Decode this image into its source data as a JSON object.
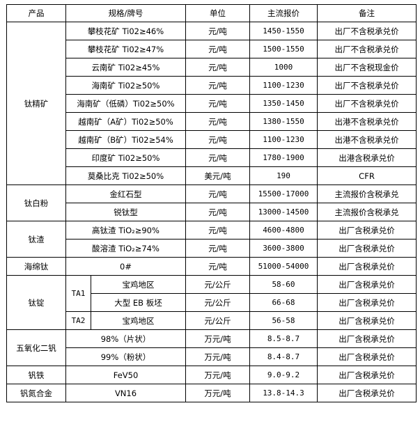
{
  "headers": {
    "product": "产品",
    "spec": "规格/牌号",
    "unit": "单位",
    "price": "主流报价",
    "note": "备注"
  },
  "groups": {
    "titanium_concentrate": {
      "product": "钛精矿",
      "rows": [
        {
          "spec": "攀枝花矿 Ti02≥46%",
          "unit": "元/吨",
          "price": "1450-1550",
          "note": "出厂不含税承兑价"
        },
        {
          "spec": "攀枝花矿 Ti02≥47%",
          "unit": "元/吨",
          "price": "1500-1550",
          "note": "出厂不含税承兑价"
        },
        {
          "spec": "云南矿 Ti02≥45%",
          "unit": "元/吨",
          "price": "1000",
          "note": "出厂不含税现金价"
        },
        {
          "spec": "海南矿 Ti02≥50%",
          "unit": "元/吨",
          "price": "1100-1230",
          "note": "出厂不含税承兑价"
        },
        {
          "spec": "海南矿（低磷）Ti02≥50%",
          "unit": "元/吨",
          "price": "1350-1450",
          "note": "出厂不含税承兑价"
        },
        {
          "spec": "越南矿（A矿）Ti02≥50%",
          "unit": "元/吨",
          "price": "1380-1550",
          "note": "出港不含税承兑价"
        },
        {
          "spec": "越南矿（B矿）Ti02≥54%",
          "unit": "元/吨",
          "price": "1100-1230",
          "note": "出港不含税承兑价"
        },
        {
          "spec": "印度矿 Ti02≥50%",
          "unit": "元/吨",
          "price": "1780-1900",
          "note": "出港含税承兑价"
        },
        {
          "spec": "莫桑比克 Ti02≥50%",
          "unit": "美元/吨",
          "price": "190",
          "note": "CFR"
        }
      ]
    },
    "titanium_dioxide": {
      "product": "钛白粉",
      "rows": [
        {
          "spec": "金红石型",
          "unit": "元/吨",
          "price": "15500-17000",
          "note": "主流报价含税承兑"
        },
        {
          "spec": "锐钛型",
          "unit": "元/吨",
          "price": "13000-14500",
          "note": "主流报价含税承兑"
        }
      ]
    },
    "titanium_slag": {
      "product": "钛渣",
      "rows": [
        {
          "spec": "高钛渣 TiO₂≥90%",
          "unit": "元/吨",
          "price": "4600-4800",
          "note": "出厂含税承兑价"
        },
        {
          "spec": "酸溶渣 TiO₂≥74%",
          "unit": "元/吨",
          "price": "3600-3800",
          "note": "出厂含税承兑价"
        }
      ]
    },
    "sponge_titanium": {
      "product": "海绵钛",
      "rows": [
        {
          "spec": "0#",
          "unit": "元/吨",
          "price": "51000-54000",
          "note": "出厂含税承兑价"
        }
      ]
    },
    "titanium_ingot": {
      "product": "钛锭",
      "grade_ta1": "TA1",
      "grade_ta2": "TA2",
      "rows": [
        {
          "spec": "宝鸡地区",
          "unit": "元/公斤",
          "price": "58-60",
          "note": "出厂含税承兑价"
        },
        {
          "spec": "大型 EB 板坯",
          "unit": "元/公斤",
          "price": "66-68",
          "note": "出厂含税承兑价"
        },
        {
          "spec": "宝鸡地区",
          "unit": "元/公斤",
          "price": "56-58",
          "note": "出厂含税承兑价"
        }
      ]
    },
    "vanadium_pentoxide": {
      "product": "五氧化二钒",
      "rows": [
        {
          "spec": "98%（片状）",
          "unit": "万元/吨",
          "price": "8.5-8.7",
          "note": "出厂含税承兑价"
        },
        {
          "spec": "99%（粉状）",
          "unit": "万元/吨",
          "price": "8.4-8.7",
          "note": "出厂含税承兑价"
        }
      ]
    },
    "ferrovanadium": {
      "product": "钒铁",
      "rows": [
        {
          "spec": "FeV50",
          "unit": "万元/吨",
          "price": "9.0-9.2",
          "note": "出厂含税承兑价"
        }
      ]
    },
    "vanadium_nitrogen": {
      "product": "钒氮合金",
      "rows": [
        {
          "spec": "VN16",
          "unit": "万元/吨",
          "price": "13.8-14.3",
          "note": "出厂含税承兑价"
        }
      ]
    }
  }
}
